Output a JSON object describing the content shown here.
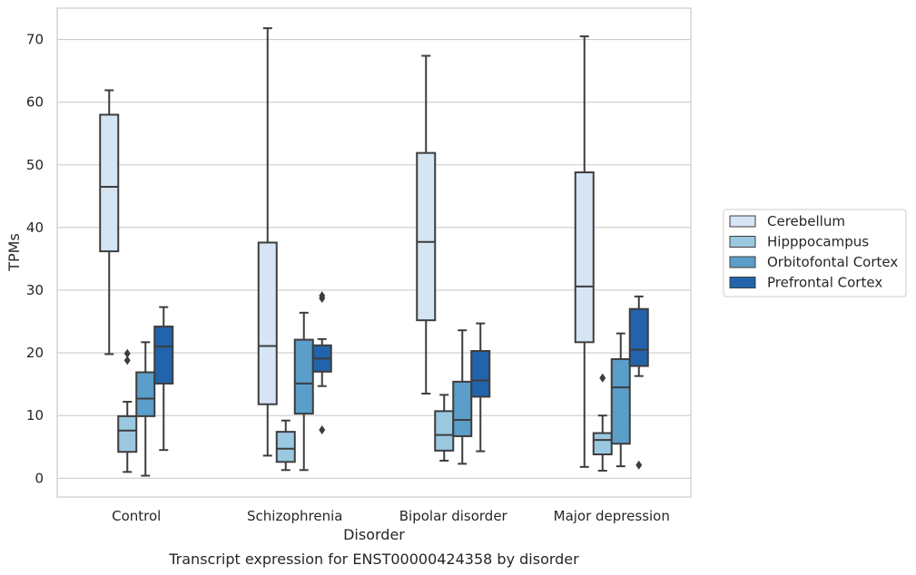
{
  "caption": "Transcript expression for ENST00000424358 by disorder",
  "chart_data": {
    "type": "box",
    "title": "",
    "xlabel": "Disorder",
    "ylabel": "TPMs",
    "ylim": [
      -3,
      75
    ],
    "yticks": [
      0,
      10,
      20,
      30,
      40,
      50,
      60,
      70
    ],
    "grid": "horizontal",
    "legend_position": "right",
    "categories": [
      "Control",
      "Schizophrenia",
      "Bipolar disorder",
      "Major depression"
    ],
    "series": [
      {
        "name": "Cerebellum",
        "color": "#d6e5f4",
        "boxes": [
          {
            "whislo": 19.8,
            "q1": 36.2,
            "med": 46.5,
            "q3": 58.0,
            "whishi": 61.9,
            "fliers": []
          },
          {
            "whislo": 3.6,
            "q1": 11.8,
            "med": 21.1,
            "q3": 37.6,
            "whishi": 71.8,
            "fliers": []
          },
          {
            "whislo": 13.5,
            "q1": 25.2,
            "med": 37.7,
            "q3": 51.9,
            "whishi": 67.4,
            "fliers": []
          },
          {
            "whislo": 1.8,
            "q1": 21.7,
            "med": 30.6,
            "q3": 48.8,
            "whishi": 70.5,
            "fliers": []
          }
        ]
      },
      {
        "name": "Hipppocampus",
        "color": "#9ac8e0",
        "boxes": [
          {
            "whislo": 1.0,
            "q1": 4.2,
            "med": 7.6,
            "q3": 9.9,
            "whishi": 12.2,
            "fliers": [
              18.8,
              19.9
            ]
          },
          {
            "whislo": 1.3,
            "q1": 2.6,
            "med": 4.7,
            "q3": 7.4,
            "whishi": 9.2,
            "fliers": []
          },
          {
            "whislo": 2.8,
            "q1": 4.4,
            "med": 6.9,
            "q3": 10.7,
            "whishi": 13.3,
            "fliers": []
          },
          {
            "whislo": 1.2,
            "q1": 3.8,
            "med": 6.1,
            "q3": 7.2,
            "whishi": 10.0,
            "fliers": [
              16.0
            ]
          }
        ]
      },
      {
        "name": "Orbitofontal Cortex",
        "color": "#5a9ec9",
        "boxes": [
          {
            "whislo": 0.4,
            "q1": 9.9,
            "med": 12.7,
            "q3": 16.9,
            "whishi": 21.7,
            "fliers": []
          },
          {
            "whislo": 1.3,
            "q1": 10.3,
            "med": 15.1,
            "q3": 22.1,
            "whishi": 26.4,
            "fliers": []
          },
          {
            "whislo": 2.3,
            "q1": 6.7,
            "med": 9.3,
            "q3": 15.4,
            "whishi": 23.6,
            "fliers": []
          },
          {
            "whislo": 1.9,
            "q1": 5.5,
            "med": 14.5,
            "q3": 19.0,
            "whishi": 23.1,
            "fliers": []
          }
        ]
      },
      {
        "name": "Prefrontal Cortex",
        "color": "#2264ab",
        "boxes": [
          {
            "whislo": 4.5,
            "q1": 15.1,
            "med": 21.0,
            "q3": 24.2,
            "whishi": 27.3,
            "fliers": []
          },
          {
            "whislo": 14.7,
            "q1": 17.0,
            "med": 19.1,
            "q3": 21.2,
            "whishi": 22.2,
            "fliers": [
              7.7,
              28.7,
              29.1
            ]
          },
          {
            "whislo": 4.3,
            "q1": 13.0,
            "med": 15.6,
            "q3": 20.3,
            "whishi": 24.7,
            "fliers": []
          },
          {
            "whislo": 16.3,
            "q1": 17.9,
            "med": 20.5,
            "q3": 27.0,
            "whishi": 29.0,
            "fliers": [
              2.1
            ]
          }
        ]
      }
    ]
  }
}
